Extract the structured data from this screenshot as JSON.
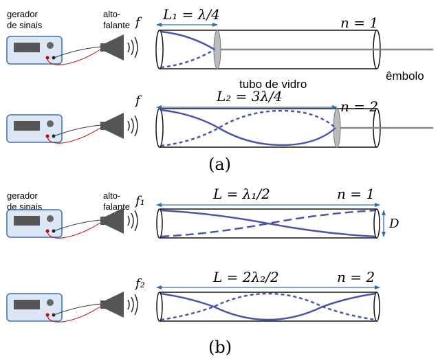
{
  "part_a": {
    "label": "(a)",
    "generator_label_line1": "gerador",
    "generator_label_line2": "de sinais",
    "speaker_label_line1": "alto-",
    "speaker_label_line2": "falante",
    "row1": {
      "freq": "f",
      "length_label": "L₁ = λ/4",
      "mode": "n = 1",
      "tube_label": "tubo de vidro",
      "piston_label": "êmbolo"
    },
    "row2": {
      "freq": "f",
      "length_label": "L₂ = 3λ/4",
      "mode": "n = 2"
    }
  },
  "part_b": {
    "label": "(b)",
    "generator_label_line1": "gerador",
    "generator_label_line2": "de sinais",
    "speaker_label_line1": "alto-",
    "speaker_label_line2": "falante",
    "row1": {
      "freq": "f₁",
      "length_label": "L = λ₁/2",
      "mode": "n = 1",
      "diameter_label": "D"
    },
    "row2": {
      "freq": "f₂",
      "length_label": "L = 2λ₂/2",
      "mode": "n = 2"
    }
  },
  "colors": {
    "wave": "#4a55a8",
    "arrow": "#2f6db0",
    "device_fill": "#dde6f4",
    "device_stroke": "#3e6fae",
    "speaker": "#555555",
    "wire_red": "#cc0000"
  }
}
